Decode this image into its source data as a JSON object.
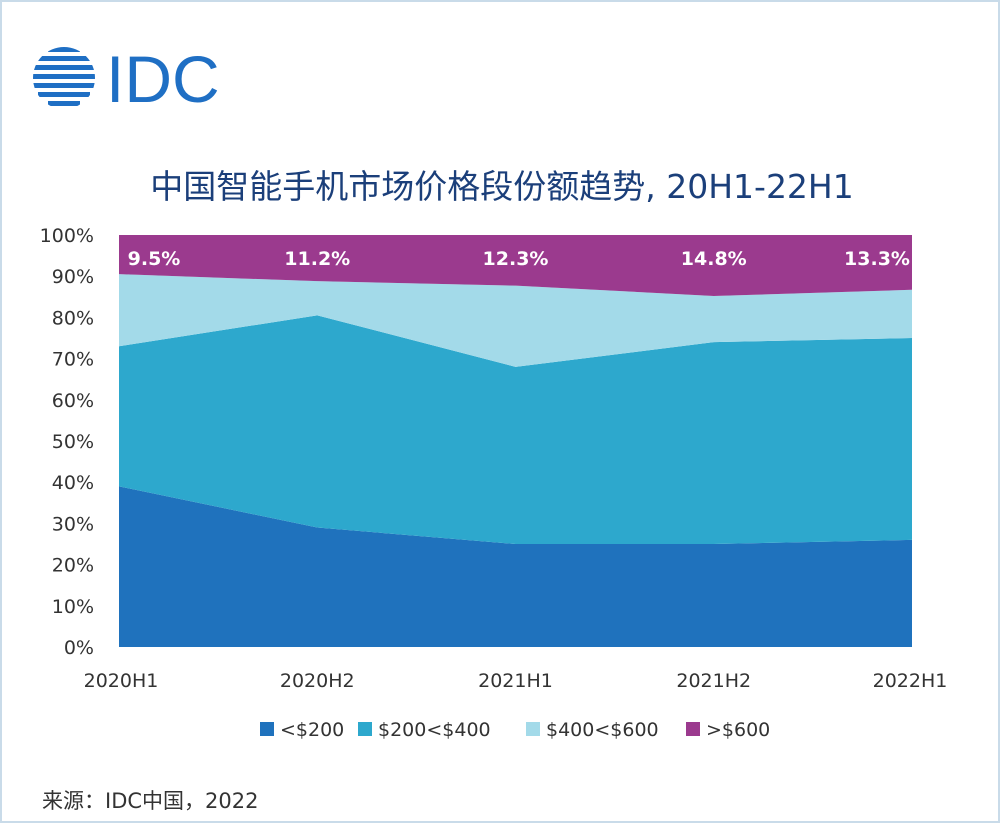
{
  "logo": {
    "text": "IDC",
    "color": "#1f6fc4"
  },
  "title": "中国智能手机市场价格段份额趋势, 20H1-22H1",
  "source": "来源：IDC中国，2022",
  "chart_data": {
    "type": "area",
    "stacked": true,
    "categories": [
      "2020H1",
      "2020H2",
      "2021H1",
      "2021H2",
      "2022H1"
    ],
    "ylim": [
      0,
      100
    ],
    "yticks": [
      0,
      10,
      20,
      30,
      40,
      50,
      60,
      70,
      80,
      90,
      100
    ],
    "ytick_labels": [
      "0%",
      "10%",
      "20%",
      "30%",
      "40%",
      "50%",
      "60%",
      "70%",
      "80%",
      "90%",
      "100%"
    ],
    "series": [
      {
        "name": "<$200",
        "color": "#1f72bd",
        "values": [
          39,
          29,
          25,
          25,
          26
        ]
      },
      {
        "name": "$200<$400",
        "color": "#2da8cd",
        "values": [
          34,
          51.5,
          43,
          49,
          49
        ]
      },
      {
        "name": "$400<$600",
        "color": "#a3dae9",
        "values": [
          17.5,
          8.3,
          19.7,
          11.2,
          11.7
        ]
      },
      {
        "name": ">$600",
        "color": "#9b3a8e",
        "values": [
          9.5,
          11.2,
          12.3,
          14.8,
          13.3
        ]
      }
    ],
    "data_labels": [
      "9.5%",
      "11.2%",
      "12.3%",
      "14.8%",
      "13.3%"
    ],
    "legend_position": "bottom"
  }
}
